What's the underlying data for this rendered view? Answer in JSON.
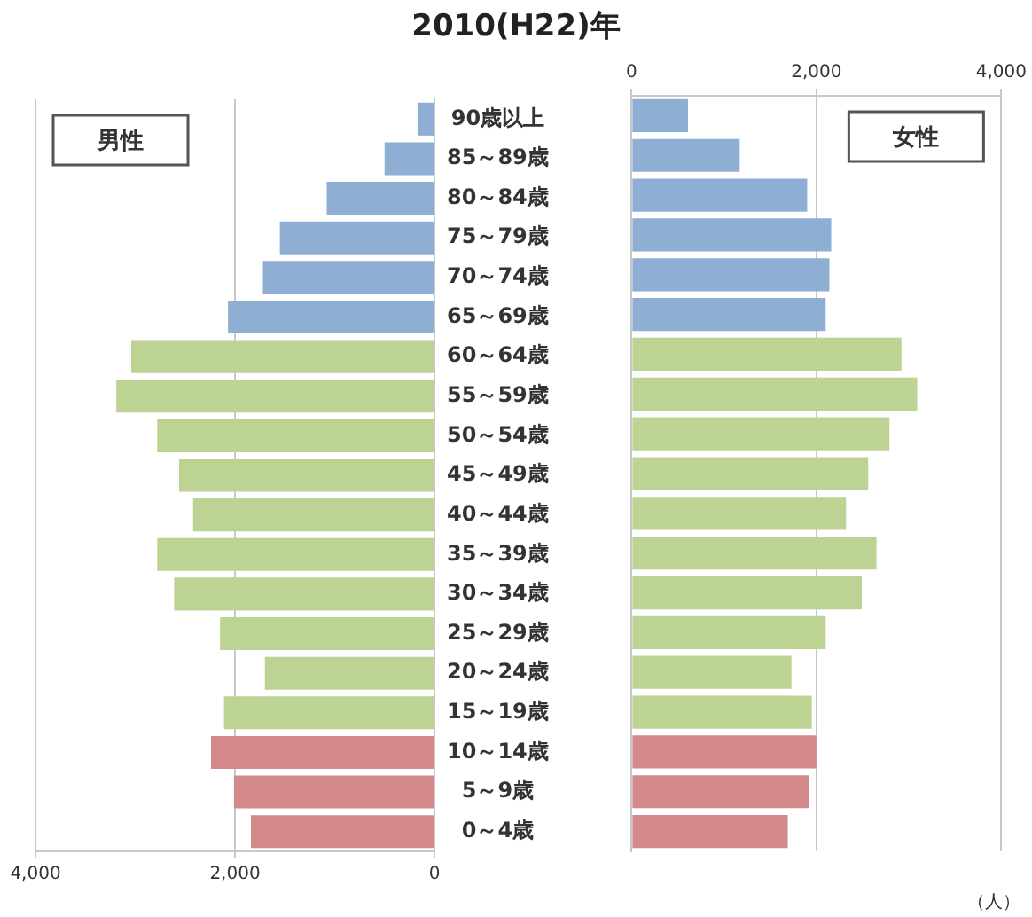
{
  "chart_data": [
    {
      "type": "bar",
      "orientation": "horizontal",
      "title": "2010(H22)年",
      "categories": [
        "90歳以上",
        "85～89歳",
        "80～84歳",
        "75～79歳",
        "70～74歳",
        "65～69歳",
        "60～64歳",
        "55～59歳",
        "50～54歳",
        "45～49歳",
        "40～44歳",
        "35～39歳",
        "30～34歳",
        "25～29歳",
        "20～24歳",
        "15～19歳",
        "10～14歳",
        "5～9歳",
        "0～4歳"
      ],
      "values": [
        170,
        500,
        1080,
        1550,
        1720,
        2070,
        3040,
        3190,
        2780,
        2560,
        2420,
        2780,
        2610,
        2150,
        1700,
        2110,
        2240,
        2010,
        1840
      ],
      "colors": [
        "#8eaed3",
        "#8eaed3",
        "#8eaed3",
        "#8eaed3",
        "#8eaed3",
        "#8eaed3",
        "#bcd393",
        "#bcd393",
        "#bcd393",
        "#bcd393",
        "#bcd393",
        "#bcd393",
        "#bcd393",
        "#bcd393",
        "#bcd393",
        "#bcd393",
        "#d48a8a",
        "#d48a8a",
        "#d48a8a"
      ],
      "xlim": [
        4000,
        0
      ],
      "xticks": [
        {
          "value": 4000,
          "label": "4,000"
        },
        {
          "value": 2000,
          "label": "2,000"
        },
        {
          "value": 0,
          "label": "0"
        }
      ],
      "grid": "x",
      "legend": false,
      "annotations": [
        "男性"
      ]
    },
    {
      "type": "bar",
      "orientation": "horizontal",
      "categories": [
        null,
        null,
        null,
        null,
        null,
        null,
        null,
        null,
        null,
        null,
        null,
        null,
        null,
        null,
        null,
        null,
        null,
        null,
        null
      ],
      "values": [
        610,
        1170,
        1900,
        2160,
        2140,
        2100,
        2920,
        3090,
        2790,
        2560,
        2320,
        2650,
        2490,
        2100,
        1730,
        1950,
        2000,
        1920,
        1690
      ],
      "colors": [
        "#8eaed3",
        "#8eaed3",
        "#8eaed3",
        "#8eaed3",
        "#8eaed3",
        "#8eaed3",
        "#bcd393",
        "#bcd393",
        "#bcd393",
        "#bcd393",
        "#bcd393",
        "#bcd393",
        "#bcd393",
        "#bcd393",
        "#bcd393",
        "#bcd393",
        "#d48a8a",
        "#d48a8a",
        "#d48a8a"
      ],
      "xlim": [
        0,
        4000
      ],
      "xticks": [
        {
          "value": 0,
          "label": "0"
        },
        {
          "value": 2000,
          "label": "2,000"
        },
        {
          "value": 4000,
          "label": "4,000"
        }
      ],
      "grid": "x",
      "legend": false,
      "tick_labels": "x",
      "annotations": [
        "女性",
        "（人）"
      ]
    }
  ]
}
